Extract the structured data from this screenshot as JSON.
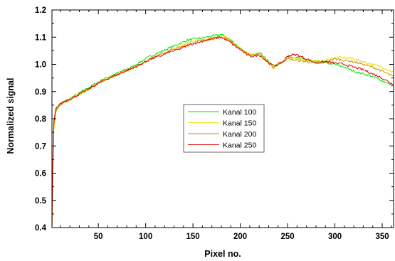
{
  "chart_data": {
    "type": "line",
    "xlabel": "Pixel no.",
    "ylabel": "Normalized signal",
    "xlim": [
      1,
      362
    ],
    "ylim": [
      0.4,
      1.2
    ],
    "xticks": [
      50,
      100,
      150,
      200,
      250,
      300,
      350
    ],
    "yticks": [
      0.4,
      0.5,
      0.6,
      0.7,
      0.8,
      0.9,
      1.0,
      1.1,
      1.2
    ],
    "ytick_labels": [
      "0.4",
      "0.5",
      "0.6",
      "0.7",
      "0.8",
      "0.9",
      "1.0",
      "1.1",
      "1.2"
    ],
    "grid": false,
    "legend_position": "center",
    "series": [
      {
        "name": "Kanal 100",
        "color": "#00e000",
        "x": [
          1,
          2,
          3,
          5,
          8,
          12,
          18,
          25,
          35,
          45,
          55,
          65,
          75,
          85,
          95,
          105,
          115,
          125,
          135,
          145,
          155,
          165,
          172,
          180,
          185,
          190,
          195,
          200,
          205,
          210,
          215,
          220,
          225,
          230,
          235,
          240,
          245,
          250,
          260,
          270,
          280,
          290,
          300,
          310,
          320,
          330,
          340,
          350,
          362
        ],
        "y": [
          0.4,
          0.64,
          0.78,
          0.83,
          0.85,
          0.86,
          0.87,
          0.885,
          0.905,
          0.925,
          0.945,
          0.96,
          0.975,
          0.99,
          1.01,
          1.03,
          1.045,
          1.06,
          1.075,
          1.09,
          1.095,
          1.1,
          1.105,
          1.11,
          1.1,
          1.09,
          1.075,
          1.06,
          1.045,
          1.035,
          1.035,
          1.045,
          1.03,
          1.01,
          0.99,
          1.0,
          1.01,
          1.03,
          1.025,
          1.015,
          1.01,
          1.005,
          1.0,
          0.99,
          0.975,
          0.965,
          0.955,
          0.94,
          0.92
        ]
      },
      {
        "name": "Kanal 150",
        "color": "#f0e000",
        "x": [
          1,
          2,
          3,
          5,
          8,
          12,
          18,
          25,
          35,
          45,
          55,
          65,
          75,
          85,
          95,
          105,
          115,
          125,
          135,
          145,
          155,
          165,
          172,
          180,
          185,
          190,
          195,
          200,
          205,
          210,
          215,
          220,
          225,
          230,
          235,
          240,
          245,
          250,
          260,
          270,
          280,
          290,
          300,
          310,
          320,
          330,
          340,
          350,
          362
        ],
        "y": [
          0.4,
          0.6,
          0.76,
          0.82,
          0.845,
          0.855,
          0.865,
          0.88,
          0.9,
          0.92,
          0.94,
          0.955,
          0.97,
          0.985,
          1.0,
          1.02,
          1.035,
          1.05,
          1.065,
          1.08,
          1.09,
          1.095,
          1.1,
          1.105,
          1.1,
          1.085,
          1.07,
          1.06,
          1.045,
          1.035,
          1.035,
          1.04,
          1.025,
          1.005,
          0.985,
          1.0,
          1.01,
          1.025,
          1.02,
          1.015,
          1.01,
          1.015,
          1.025,
          1.025,
          1.02,
          1.01,
          1.0,
          0.99,
          0.97
        ]
      },
      {
        "name": "Kanal 200",
        "color": "#d09000",
        "x": [
          1,
          2,
          3,
          5,
          8,
          12,
          18,
          25,
          35,
          45,
          55,
          65,
          75,
          85,
          95,
          105,
          115,
          125,
          135,
          145,
          155,
          165,
          172,
          180,
          185,
          190,
          195,
          200,
          205,
          210,
          215,
          220,
          225,
          230,
          235,
          240,
          245,
          250,
          260,
          270,
          280,
          290,
          300,
          310,
          320,
          330,
          340,
          350,
          362
        ],
        "y": [
          0.4,
          0.62,
          0.77,
          0.825,
          0.845,
          0.855,
          0.865,
          0.88,
          0.9,
          0.92,
          0.94,
          0.955,
          0.97,
          0.985,
          1.0,
          1.02,
          1.035,
          1.05,
          1.06,
          1.075,
          1.085,
          1.09,
          1.095,
          1.1,
          1.095,
          1.085,
          1.07,
          1.06,
          1.045,
          1.035,
          1.035,
          1.04,
          1.025,
          1.005,
          0.99,
          1.0,
          1.01,
          1.02,
          1.015,
          1.01,
          1.005,
          1.01,
          1.02,
          1.015,
          1.01,
          1.0,
          0.99,
          0.975,
          0.955
        ]
      },
      {
        "name": "Kanal 250",
        "color": "#e00000",
        "x": [
          1,
          2,
          3,
          5,
          8,
          12,
          18,
          25,
          35,
          45,
          55,
          65,
          75,
          85,
          95,
          105,
          115,
          125,
          135,
          145,
          155,
          165,
          172,
          180,
          185,
          190,
          195,
          200,
          205,
          210,
          215,
          220,
          225,
          230,
          235,
          240,
          245,
          250,
          255,
          260,
          270,
          280,
          290,
          300,
          310,
          320,
          330,
          340,
          350,
          362
        ],
        "y": [
          0.4,
          0.66,
          0.79,
          0.835,
          0.85,
          0.86,
          0.87,
          0.88,
          0.9,
          0.92,
          0.94,
          0.955,
          0.97,
          0.985,
          1.0,
          1.02,
          1.03,
          1.045,
          1.055,
          1.07,
          1.08,
          1.09,
          1.095,
          1.1,
          1.09,
          1.08,
          1.065,
          1.055,
          1.04,
          1.03,
          1.03,
          1.035,
          1.02,
          1.005,
          0.995,
          1.0,
          1.01,
          1.03,
          1.035,
          1.035,
          1.02,
          1.005,
          1.01,
          1.005,
          1.0,
          0.99,
          0.98,
          0.965,
          0.95,
          0.925
        ]
      }
    ]
  }
}
